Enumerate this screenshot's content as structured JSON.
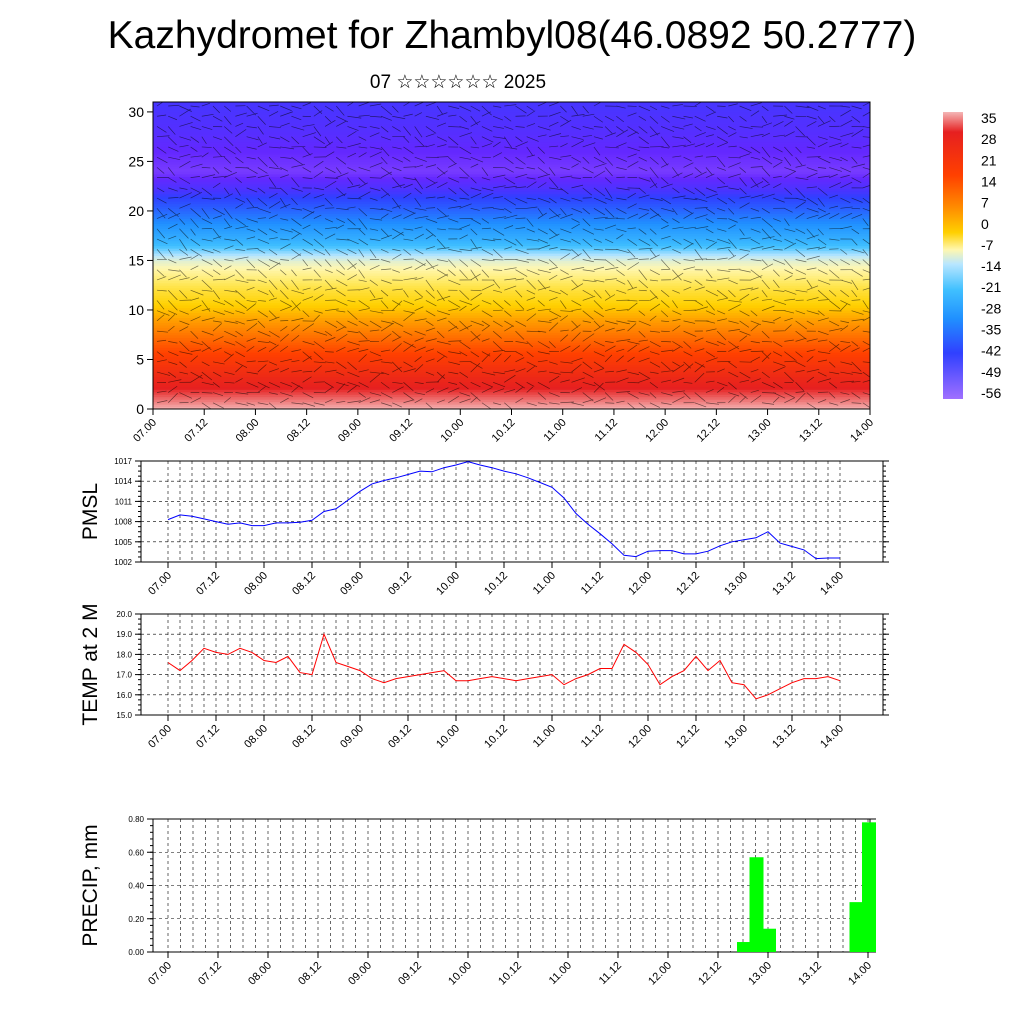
{
  "header": {
    "title": "Kazhydromet for Zhambyl08(46.0892 50.2777)",
    "subtitle": "07 ☆☆☆☆☆☆ 2025"
  },
  "colors": {
    "pmsl_line": "#0000ff",
    "temp_line": "#ff0000",
    "precip_bar": "#00ff00",
    "grid": "#000000"
  },
  "chart_data": [
    {
      "type": "heatmap",
      "title": "",
      "xlabel": "",
      "ylabel": "",
      "x_ticks": [
        "07.00",
        "07.12",
        "08.00",
        "08.12",
        "09.00",
        "09.12",
        "10.00",
        "10.12",
        "11.00",
        "11.12",
        "12.00",
        "12.12",
        "13.00",
        "13.12",
        "14.00"
      ],
      "y_ticks": [
        "0",
        "5",
        "10",
        "15",
        "20",
        "25",
        "30"
      ],
      "ylim": [
        0,
        31
      ],
      "temperature_profile": {
        "height": [
          0,
          3,
          6,
          9,
          12,
          15,
          17,
          20,
          22,
          24,
          26,
          28,
          31
        ],
        "temp": [
          35,
          28,
          20,
          12,
          2,
          -10,
          -25,
          -42,
          -52,
          -58,
          -56,
          -54,
          -52
        ]
      },
      "colorbar": {
        "labels": [
          "35",
          "28",
          "21",
          "14",
          "7",
          "0",
          "-7",
          "-14",
          "-21",
          "-28",
          "-35",
          "-42",
          "-49",
          "-56"
        ],
        "stops": [
          "#f4b6b6",
          "#e62020",
          "#ff4000",
          "#ff7a00",
          "#ffae00",
          "#ffe000",
          "#fff7b0",
          "#b8e6ff",
          "#40c0ff",
          "#2090ff",
          "#3050ff",
          "#5030ff",
          "#7a2cff",
          "#a070ff"
        ]
      },
      "overlay": "wind barbs"
    },
    {
      "type": "line",
      "title": "",
      "ylabel": "PMSL",
      "x_ticks": [
        "07.00",
        "07.12",
        "08.00",
        "08.12",
        "09.00",
        "09.12",
        "10.00",
        "10.12",
        "11.00",
        "11.12",
        "12.00",
        "12.12",
        "13.00",
        "13.12",
        "14.00"
      ],
      "y_ticks": [
        "1017",
        "1014",
        "1011",
        "1008",
        "1005",
        "1002"
      ],
      "ylim": [
        1002,
        1017
      ],
      "x": [
        0,
        3,
        6,
        9,
        12,
        15,
        18,
        21,
        24,
        27,
        30,
        33,
        36,
        39,
        42,
        45,
        48,
        51,
        54,
        57,
        60,
        63,
        66,
        69,
        72,
        75,
        78,
        81,
        84,
        87,
        90,
        93,
        96,
        99,
        102,
        105,
        108,
        111,
        114,
        117,
        120,
        123,
        126,
        129,
        132,
        135,
        138,
        141,
        144,
        147,
        150,
        153,
        156,
        159,
        162,
        165,
        168
      ],
      "series": [
        {
          "values": [
            1008.3,
            1009.0,
            1008.8,
            1008.4,
            1008.0,
            1007.6,
            1007.8,
            1007.4,
            1007.4,
            1007.8,
            1007.8,
            1007.9,
            1008.2,
            1009.5,
            1009.9,
            1011.2,
            1012.5,
            1013.6,
            1014.1,
            1014.5,
            1015.0,
            1015.5,
            1015.4,
            1016.0,
            1016.4,
            1016.9,
            1016.4,
            1016.0,
            1015.5,
            1015.1,
            1014.5,
            1013.8,
            1013.1,
            1011.5,
            1009.2,
            1007.6,
            1006.2,
            1004.7,
            1003.0,
            1002.8,
            1003.6,
            1003.7,
            1003.7,
            1003.2,
            1003.2,
            1003.6,
            1004.4,
            1005.0,
            1005.3,
            1005.6,
            1006.5,
            1004.8,
            1004.3,
            1003.8,
            1002.5,
            1002.6,
            1002.6
          ]
        }
      ]
    },
    {
      "type": "line",
      "title": "",
      "ylabel": "TEMP at 2 M",
      "x_ticks": [
        "07.00",
        "07.12",
        "08.00",
        "08.12",
        "09.00",
        "09.12",
        "10.00",
        "10.12",
        "11.00",
        "11.12",
        "12.00",
        "12.12",
        "13.00",
        "13.12",
        "14.00"
      ],
      "y_ticks": [
        "20.0",
        "19.0",
        "18.0",
        "17.0",
        "16.0",
        "15.0"
      ],
      "ylim": [
        15,
        20
      ],
      "x": [
        0,
        3,
        6,
        9,
        12,
        15,
        18,
        21,
        24,
        27,
        30,
        33,
        36,
        39,
        42,
        45,
        48,
        51,
        54,
        57,
        60,
        63,
        66,
        69,
        72,
        75,
        78,
        81,
        84,
        87,
        90,
        93,
        96,
        99,
        102,
        105,
        108,
        111,
        114,
        117,
        120,
        123,
        126,
        129,
        132,
        135,
        138,
        141,
        144,
        147,
        150,
        153,
        156,
        159,
        162,
        165,
        168
      ],
      "series": [
        {
          "values": [
            17.6,
            17.2,
            17.7,
            18.3,
            18.1,
            18.0,
            18.3,
            18.1,
            17.7,
            17.6,
            17.9,
            17.1,
            17.0,
            19.0,
            17.6,
            17.4,
            17.2,
            16.8,
            16.6,
            16.8,
            16.9,
            17.0,
            17.1,
            17.2,
            16.7,
            16.7,
            16.8,
            16.9,
            16.8,
            16.7,
            16.8,
            16.9,
            17.0,
            16.5,
            16.8,
            17.0,
            17.3,
            17.3,
            18.5,
            18.1,
            17.5,
            16.5,
            16.9,
            17.2,
            17.9,
            17.2,
            17.7,
            16.6,
            16.5,
            15.8,
            16.0,
            16.3,
            16.6,
            16.8,
            16.8,
            16.9,
            16.7
          ]
        }
      ]
    },
    {
      "type": "bar",
      "title": "",
      "ylabel": "PRECIP, mm",
      "x_ticks": [
        "07.00",
        "07.12",
        "08.00",
        "08.12",
        "09.00",
        "09.12",
        "10.00",
        "10.12",
        "11.00",
        "11.12",
        "12.00",
        "12.12",
        "13.00",
        "13.12",
        "14.00"
      ],
      "y_ticks": [
        "0.80",
        "0.60",
        "0.40",
        "0.20",
        "0.00"
      ],
      "ylim": [
        0,
        0.8
      ],
      "bar_hours": [
        138,
        141,
        144,
        165,
        168
      ],
      "values": [
        0.06,
        0.57,
        0.14,
        0.3,
        0.78
      ]
    }
  ]
}
